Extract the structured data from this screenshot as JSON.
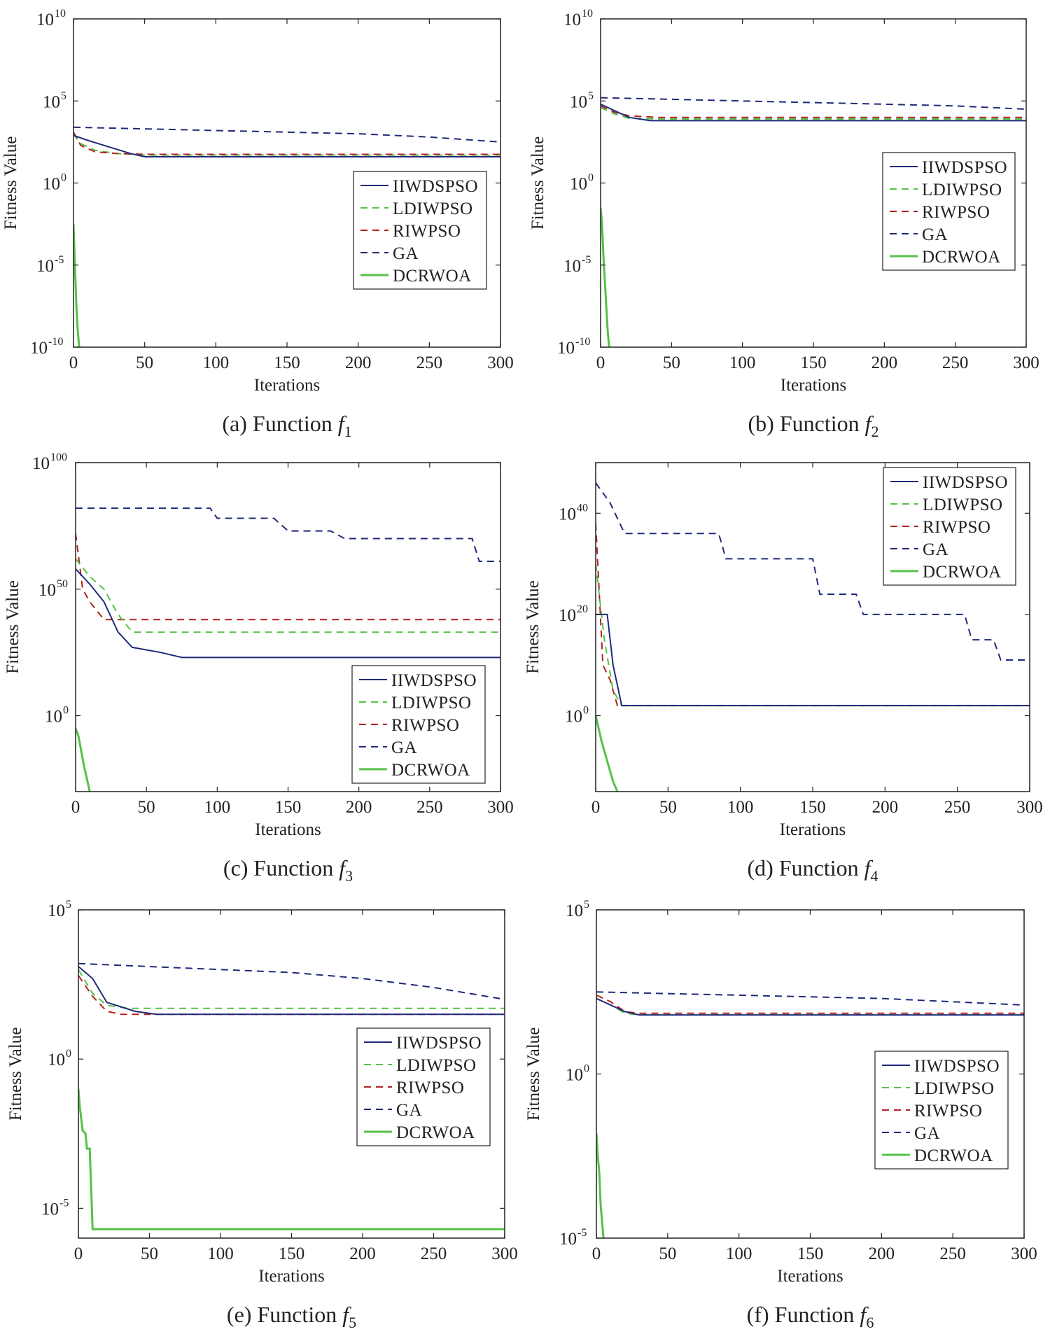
{
  "figure": {
    "legend_entries": [
      "IIWDSPSO",
      "LDIWPSO",
      "RIWPSO",
      "GA",
      "DCRWOA"
    ],
    "series_colors": {
      "IIWDSPSO": "#1f2a7a",
      "LDIWPSO": "#55c247",
      "RIWPSO": "#b22222",
      "GA": "#1f2a7a",
      "DCRWOA": "#55c247"
    },
    "series_styles": {
      "IIWDSPSO": "solid",
      "LDIWPSO": "dashed",
      "RIWPSO": "dashed",
      "GA": "dashed",
      "DCRWOA": "solid"
    }
  },
  "chart_data": [
    {
      "type": "line",
      "caption_prefix": "(a) Function ",
      "caption_f": "f",
      "caption_sub": "1",
      "xlabel": "Iterations",
      "ylabel": "Fitness Value",
      "xlim": [
        0,
        300
      ],
      "ylim_log10": [
        -10,
        10
      ],
      "x_ticks": [
        "0",
        "50",
        "100",
        "150",
        "200",
        "250",
        "300"
      ],
      "y_ticks": [
        {
          "base": "10",
          "exp": "10"
        },
        {
          "base": "10",
          "exp": "5"
        },
        {
          "base": "10",
          "exp": "0"
        },
        {
          "base": "10",
          "exp": "-5"
        },
        {
          "base": "10",
          "exp": "-10"
        }
      ],
      "legend_position": "right-middle",
      "series": [
        {
          "name": "GA",
          "x": [
            0,
            50,
            100,
            150,
            200,
            250,
            300
          ],
          "log10_y": [
            3.4,
            3.3,
            3.2,
            3.1,
            3.0,
            2.8,
            2.5
          ]
        },
        {
          "name": "LDIWPSO",
          "x": [
            0,
            5,
            15,
            30,
            50,
            300
          ],
          "log10_y": [
            3.0,
            2.4,
            2.0,
            1.8,
            1.7,
            1.7
          ]
        },
        {
          "name": "RIWPSO",
          "x": [
            0,
            5,
            15,
            30,
            50,
            300
          ],
          "log10_y": [
            3.1,
            2.3,
            1.9,
            1.8,
            1.75,
            1.75
          ]
        },
        {
          "name": "IIWDSPSO",
          "x": [
            0,
            10,
            25,
            40,
            50,
            300
          ],
          "log10_y": [
            2.9,
            2.6,
            2.2,
            1.8,
            1.6,
            1.6
          ]
        },
        {
          "name": "DCRWOA",
          "x": [
            0,
            1,
            2,
            3,
            4
          ],
          "log10_y": [
            -2.5,
            -5,
            -7.5,
            -9,
            -10
          ]
        }
      ]
    },
    {
      "type": "line",
      "caption_prefix": "(b) Function ",
      "caption_f": "f",
      "caption_sub": "2",
      "xlabel": "Iterations",
      "ylabel": "Fitness Value",
      "xlim": [
        0,
        300
      ],
      "ylim_log10": [
        -10,
        10
      ],
      "x_ticks": [
        "0",
        "50",
        "100",
        "150",
        "200",
        "250",
        "300"
      ],
      "y_ticks": [
        {
          "base": "10",
          "exp": "10"
        },
        {
          "base": "10",
          "exp": "5"
        },
        {
          "base": "10",
          "exp": "0"
        },
        {
          "base": "10",
          "exp": "-5"
        },
        {
          "base": "10",
          "exp": "-10"
        }
      ],
      "legend_position": "right-middle",
      "series": [
        {
          "name": "GA",
          "x": [
            0,
            50,
            100,
            150,
            200,
            250,
            300
          ],
          "log10_y": [
            5.2,
            5.1,
            5.0,
            4.9,
            4.8,
            4.7,
            4.5
          ]
        },
        {
          "name": "RIWPSO",
          "x": [
            0,
            10,
            20,
            40,
            300
          ],
          "log10_y": [
            4.7,
            4.3,
            4.1,
            4.0,
            4.0
          ]
        },
        {
          "name": "LDIWPSO",
          "x": [
            0,
            10,
            20,
            40,
            300
          ],
          "log10_y": [
            4.6,
            4.2,
            3.95,
            3.9,
            3.9
          ]
        },
        {
          "name": "IIWDSPSO",
          "x": [
            0,
            10,
            20,
            35,
            300
          ],
          "log10_y": [
            4.8,
            4.4,
            4.0,
            3.8,
            3.8
          ]
        },
        {
          "name": "DCRWOA",
          "x": [
            0,
            1,
            2,
            3,
            4,
            5,
            6
          ],
          "log10_y": [
            -1.5,
            -2.5,
            -4.5,
            -6,
            -7.5,
            -9,
            -10
          ]
        }
      ]
    },
    {
      "type": "line",
      "caption_prefix": "(c) Function ",
      "caption_f": "f",
      "caption_sub": "3",
      "xlabel": "Iterations",
      "ylabel": "Fitness Value",
      "xlim": [
        0,
        300
      ],
      "ylim_log10": [
        -30,
        100
      ],
      "x_ticks": [
        "0",
        "50",
        "100",
        "150",
        "200",
        "250",
        "300"
      ],
      "y_ticks": [
        {
          "base": "10",
          "exp": "100"
        },
        {
          "base": "10",
          "exp": "50"
        },
        {
          "base": "10",
          "exp": "0"
        }
      ],
      "legend_position": "right-lower",
      "series": [
        {
          "name": "GA",
          "x": [
            0,
            95,
            100,
            140,
            150,
            180,
            190,
            280,
            285,
            300
          ],
          "log10_y": [
            82,
            82,
            78,
            78,
            73,
            73,
            70,
            70,
            61,
            61
          ]
        },
        {
          "name": "RIWPSO",
          "x": [
            0,
            5,
            10,
            20,
            30,
            300
          ],
          "log10_y": [
            72,
            50,
            45,
            38,
            38,
            38
          ]
        },
        {
          "name": "LDIWPSO",
          "x": [
            0,
            10,
            20,
            30,
            40,
            300
          ],
          "log10_y": [
            62,
            55,
            50,
            40,
            33,
            33
          ]
        },
        {
          "name": "IIWDSPSO",
          "x": [
            0,
            10,
            20,
            30,
            40,
            60,
            75,
            300
          ],
          "log10_y": [
            58,
            52,
            45,
            33,
            27,
            25,
            23,
            23
          ]
        },
        {
          "name": "DCRWOA",
          "x": [
            0,
            2,
            4,
            6,
            8,
            10
          ],
          "log10_y": [
            -5,
            -8,
            -14,
            -20,
            -25,
            -30
          ]
        }
      ]
    },
    {
      "type": "line",
      "caption_prefix": "(d) Function ",
      "caption_f": "f",
      "caption_sub": "4",
      "xlabel": "Iterations",
      "ylabel": "Fitness Value",
      "xlim": [
        0,
        300
      ],
      "ylim_log10": [
        -15,
        50
      ],
      "x_ticks": [
        "0",
        "50",
        "100",
        "150",
        "200",
        "250",
        "300"
      ],
      "y_ticks": [
        {
          "base": "10",
          "exp": "40"
        },
        {
          "base": "10",
          "exp": "20"
        },
        {
          "base": "10",
          "exp": "0"
        }
      ],
      "legend_position": "top-right",
      "series": [
        {
          "name": "GA",
          "x": [
            0,
            10,
            20,
            85,
            90,
            150,
            155,
            180,
            185,
            255,
            260,
            275,
            280,
            300
          ],
          "log10_y": [
            46,
            42,
            36,
            36,
            31,
            31,
            24,
            24,
            20,
            20,
            15,
            15,
            11,
            11
          ]
        },
        {
          "name": "RIWPSO",
          "x": [
            0,
            5,
            10,
            15,
            300
          ],
          "log10_y": [
            38,
            10,
            7,
            2,
            2
          ]
        },
        {
          "name": "LDIWPSO",
          "x": [
            0,
            6,
            12,
            18,
            300
          ],
          "log10_y": [
            30,
            15,
            5,
            2,
            2
          ]
        },
        {
          "name": "IIWDSPSO",
          "x": [
            0,
            8,
            12,
            18,
            300
          ],
          "log10_y": [
            20,
            20,
            10,
            2,
            2
          ]
        },
        {
          "name": "DCRWOA",
          "x": [
            0,
            4,
            8,
            12,
            15
          ],
          "log10_y": [
            0,
            -5,
            -9,
            -13,
            -15
          ]
        }
      ]
    },
    {
      "type": "line",
      "caption_prefix": "(e) Function ",
      "caption_f": "f",
      "caption_sub": "5",
      "xlabel": "Iterations",
      "ylabel": "Fitness Value",
      "xlim": [
        0,
        300
      ],
      "ylim_log10": [
        -6,
        5
      ],
      "x_ticks": [
        "0",
        "50",
        "100",
        "150",
        "200",
        "250",
        "300"
      ],
      "y_ticks": [
        {
          "base": "10",
          "exp": "5"
        },
        {
          "base": "10",
          "exp": "0"
        },
        {
          "base": "10",
          "exp": "-5"
        }
      ],
      "legend_position": "right-middle",
      "series": [
        {
          "name": "GA",
          "x": [
            0,
            50,
            100,
            150,
            200,
            250,
            300
          ],
          "log10_y": [
            3.2,
            3.1,
            3.0,
            2.9,
            2.7,
            2.4,
            2.0
          ]
        },
        {
          "name": "LDIWPSO",
          "x": [
            0,
            10,
            20,
            35,
            300
          ],
          "log10_y": [
            3.0,
            2.2,
            1.8,
            1.7,
            1.7
          ]
        },
        {
          "name": "RIWPSO",
          "x": [
            0,
            10,
            20,
            30,
            300
          ],
          "log10_y": [
            2.8,
            2.1,
            1.6,
            1.5,
            1.5
          ]
        },
        {
          "name": "IIWDSPSO",
          "x": [
            0,
            10,
            20,
            40,
            55,
            300
          ],
          "log10_y": [
            3.1,
            2.7,
            1.9,
            1.6,
            1.5,
            1.5
          ]
        },
        {
          "name": "DCRWOA",
          "x": [
            0,
            1,
            2,
            3,
            5,
            6,
            8,
            10,
            300
          ],
          "log10_y": [
            -1,
            -1.6,
            -2.0,
            -2.4,
            -2.5,
            -3.0,
            -3.0,
            -5.7,
            -5.7
          ]
        }
      ]
    },
    {
      "type": "line",
      "caption_prefix": "(f) Function ",
      "caption_f": "f",
      "caption_sub": "6",
      "xlabel": "Iterations",
      "ylabel": "Fitness Value",
      "xlim": [
        0,
        300
      ],
      "ylim_log10": [
        -5,
        5
      ],
      "x_ticks": [
        "0",
        "50",
        "100",
        "150",
        "200",
        "250",
        "300"
      ],
      "y_ticks": [
        {
          "base": "10",
          "exp": "5"
        },
        {
          "base": "10",
          "exp": "0"
        },
        {
          "base": "10",
          "exp": "-5"
        }
      ],
      "legend_position": "right-middle",
      "series": [
        {
          "name": "GA",
          "x": [
            0,
            50,
            100,
            150,
            200,
            250,
            300
          ],
          "log10_y": [
            2.5,
            2.45,
            2.4,
            2.35,
            2.3,
            2.2,
            2.1
          ]
        },
        {
          "name": "RIWPSO",
          "x": [
            0,
            10,
            20,
            30,
            300
          ],
          "log10_y": [
            2.4,
            2.2,
            1.9,
            1.85,
            1.85
          ]
        },
        {
          "name": "LDIWPSO",
          "x": [
            0,
            10,
            20,
            30,
            300
          ],
          "log10_y": [
            2.3,
            2.1,
            1.85,
            1.8,
            1.8
          ]
        },
        {
          "name": "IIWDSPSO",
          "x": [
            0,
            10,
            20,
            30,
            300
          ],
          "log10_y": [
            2.3,
            2.1,
            1.9,
            1.8,
            1.8
          ]
        },
        {
          "name": "DCRWOA",
          "x": [
            0,
            1,
            2,
            3,
            4,
            5
          ],
          "log10_y": [
            -1.8,
            -2.5,
            -3,
            -4,
            -4.5,
            -5
          ]
        }
      ]
    }
  ]
}
